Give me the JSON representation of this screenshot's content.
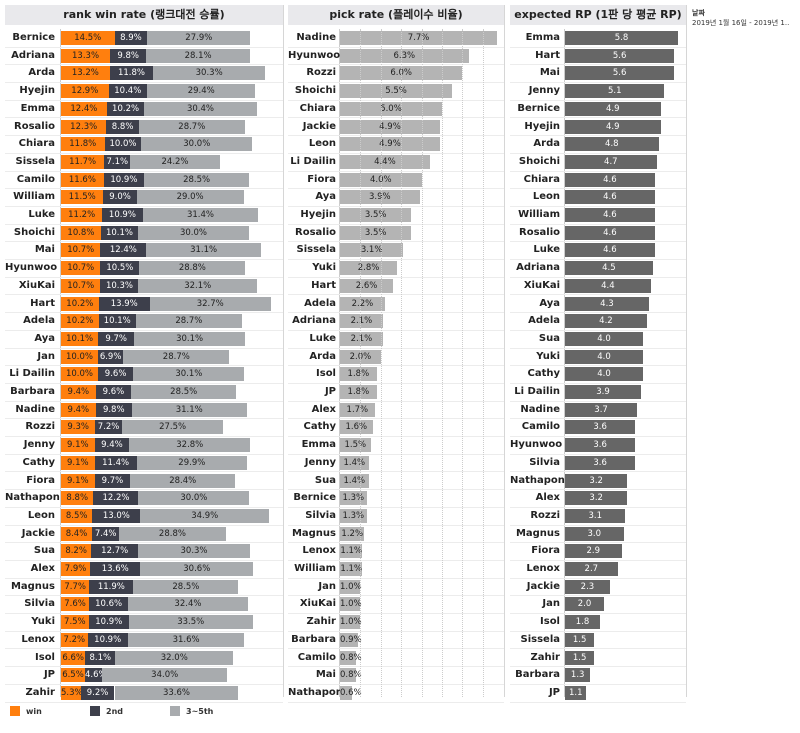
{
  "filter": {
    "label": "날짜",
    "value": "2019년 1월 16일 - 2019년 1.."
  },
  "legend": [
    {
      "label": "win",
      "color": "#ff7f0e"
    },
    {
      "label": "2nd",
      "color": "#3d3f4b"
    },
    {
      "label": "3~5th",
      "color": "#a8abae"
    }
  ],
  "chart_data": [
    {
      "type": "bar",
      "stacked": true,
      "orientation": "horizontal",
      "title": "rank win rate (랭크대전 승률)",
      "series_names": [
        "win",
        "2nd",
        "3~5th"
      ],
      "categories": [
        "Bernice",
        "Adriana",
        "Arda",
        "Hyejin",
        "Emma",
        "Rosalio",
        "Chiara",
        "Sissela",
        "Camilo",
        "William",
        "Luke",
        "Shoichi",
        "Mai",
        "Hyunwoo",
        "XiuKai",
        "Hart",
        "Adela",
        "Aya",
        "Jan",
        "Li Dailin",
        "Barbara",
        "Nadine",
        "Rozzi",
        "Jenny",
        "Cathy",
        "Fiora",
        "Nathapon",
        "Leon",
        "Jackie",
        "Sua",
        "Alex",
        "Magnus",
        "Silvia",
        "Yuki",
        "Lenox",
        "Isol",
        "JP",
        "Zahir"
      ],
      "series": [
        {
          "name": "win",
          "values": [
            14.5,
            13.3,
            13.2,
            12.9,
            12.4,
            12.3,
            11.8,
            11.7,
            11.6,
            11.5,
            11.2,
            10.8,
            10.7,
            10.7,
            10.7,
            10.2,
            10.2,
            10.1,
            10.0,
            10.0,
            9.4,
            9.4,
            9.3,
            9.1,
            9.1,
            9.1,
            8.8,
            8.5,
            8.4,
            8.2,
            7.9,
            7.7,
            7.6,
            7.5,
            7.2,
            6.6,
            6.5,
            5.3
          ]
        },
        {
          "name": "2nd",
          "values": [
            8.9,
            9.8,
            11.8,
            10.4,
            10.2,
            8.8,
            10.0,
            7.1,
            10.9,
            9.0,
            10.9,
            10.1,
            12.4,
            10.5,
            10.3,
            13.9,
            10.1,
            9.7,
            6.9,
            9.6,
            9.6,
            9.8,
            7.2,
            9.4,
            11.4,
            9.7,
            12.2,
            13.0,
            7.4,
            12.7,
            13.6,
            11.9,
            10.6,
            10.9,
            10.9,
            8.1,
            4.6,
            9.2
          ]
        },
        {
          "name": "3~5th",
          "values": [
            27.9,
            28.1,
            30.3,
            29.4,
            30.4,
            28.7,
            30.0,
            24.2,
            28.5,
            29.0,
            31.4,
            30.0,
            31.1,
            28.8,
            32.1,
            32.7,
            28.7,
            30.1,
            28.7,
            30.1,
            28.5,
            31.1,
            27.5,
            32.8,
            29.9,
            28.4,
            30.0,
            34.9,
            28.8,
            30.3,
            30.6,
            28.5,
            32.4,
            33.5,
            31.6,
            32.0,
            34.0,
            33.6
          ]
        }
      ]
    },
    {
      "type": "bar",
      "orientation": "horizontal",
      "title": "pick rate (플레이수 비율)",
      "unit": "%",
      "categories": [
        "Nadine",
        "Hyunwoo",
        "Rozzi",
        "Shoichi",
        "Chiara",
        "Jackie",
        "Leon",
        "Li Dailin",
        "Fiora",
        "Aya",
        "Hyejin",
        "Rosalio",
        "Sissela",
        "Yuki",
        "Hart",
        "Adela",
        "Adriana",
        "Luke",
        "Arda",
        "Isol",
        "JP",
        "Alex",
        "Cathy",
        "Emma",
        "Jenny",
        "Sua",
        "Bernice",
        "Silvia",
        "Magnus",
        "Lenox",
        "William",
        "Jan",
        "XiuKai",
        "Zahir",
        "Barbara",
        "Camilo",
        "Mai",
        "Nathapon"
      ],
      "values": [
        7.7,
        6.3,
        6.0,
        5.5,
        5.0,
        4.9,
        4.9,
        4.4,
        4.0,
        3.9,
        3.5,
        3.5,
        3.1,
        2.8,
        2.6,
        2.2,
        2.1,
        2.1,
        2.0,
        1.8,
        1.8,
        1.7,
        1.6,
        1.5,
        1.4,
        1.4,
        1.3,
        1.3,
        1.2,
        1.1,
        1.1,
        1.0,
        1.0,
        1.0,
        0.9,
        0.8,
        0.8,
        0.6
      ],
      "color": "#b4b4b4"
    },
    {
      "type": "bar",
      "orientation": "horizontal",
      "title": "expected RP (1판 당 평균 RP)",
      "categories": [
        "Emma",
        "Hart",
        "Mai",
        "Jenny",
        "Bernice",
        "Hyejin",
        "Arda",
        "Shoichi",
        "Chiara",
        "Leon",
        "William",
        "Rosalio",
        "Luke",
        "Adriana",
        "XiuKai",
        "Aya",
        "Adela",
        "Sua",
        "Yuki",
        "Cathy",
        "Li Dailin",
        "Nadine",
        "Camilo",
        "Hyunwoo",
        "Silvia",
        "Nathapon",
        "Alex",
        "Rozzi",
        "Magnus",
        "Fiora",
        "Lenox",
        "Jackie",
        "Jan",
        "Isol",
        "Sissela",
        "Zahir",
        "Barbara",
        "JP"
      ],
      "values": [
        5.8,
        5.6,
        5.6,
        5.1,
        4.9,
        4.9,
        4.8,
        4.7,
        4.6,
        4.6,
        4.6,
        4.6,
        4.6,
        4.5,
        4.4,
        4.3,
        4.2,
        4.0,
        4.0,
        4.0,
        3.9,
        3.7,
        3.6,
        3.6,
        3.6,
        3.2,
        3.2,
        3.1,
        3.0,
        2.9,
        2.7,
        2.3,
        2.0,
        1.8,
        1.5,
        1.5,
        1.3,
        1.1
      ],
      "color": "#666666"
    }
  ]
}
